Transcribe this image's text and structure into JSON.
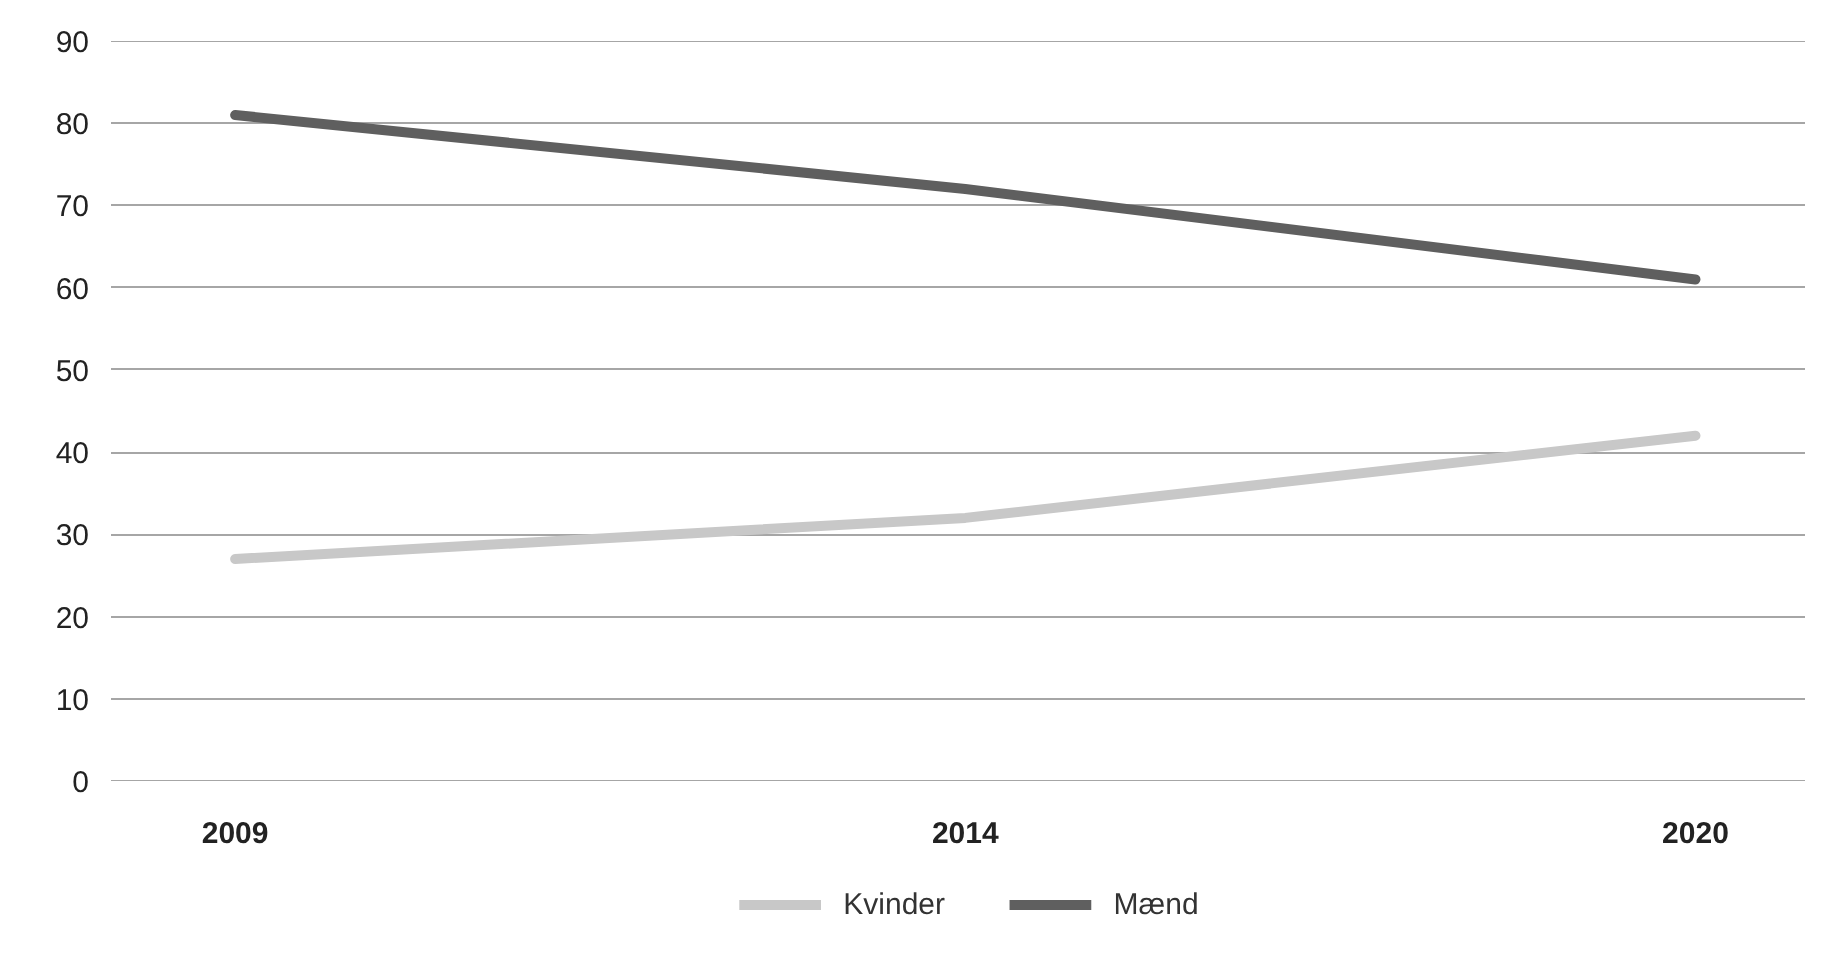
{
  "chart_data": {
    "type": "line",
    "categories": [
      "2009",
      "2014",
      "2020"
    ],
    "series": [
      {
        "name": "Kvinder",
        "color": "#c8c8c8",
        "values": [
          27,
          32,
          42
        ]
      },
      {
        "name": "Mænd",
        "color": "#5f5f5f",
        "values": [
          81,
          72,
          61
        ]
      }
    ],
    "ylim": [
      0,
      90
    ],
    "yticks": [
      0,
      10,
      20,
      30,
      40,
      50,
      60,
      70,
      80,
      90
    ],
    "grid": "y",
    "legend": "bottom",
    "marker": "none",
    "line_style": "solid"
  }
}
